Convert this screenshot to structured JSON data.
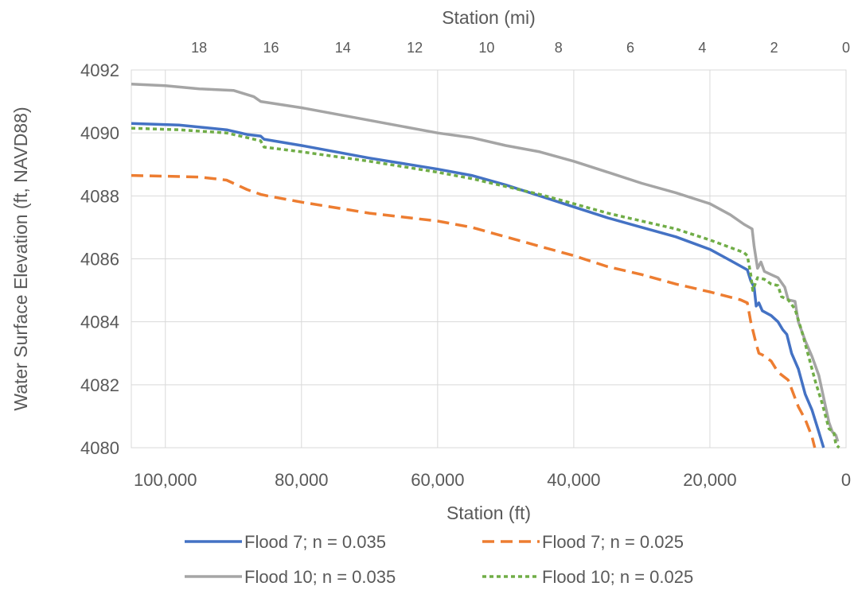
{
  "chart_data": {
    "type": "line",
    "xlabel": "Station (ft)",
    "x2label": "Station (mi)",
    "ylabel": "Water Surface Elevation (ft, NAVD88)",
    "xlim": [
      105000,
      0
    ],
    "x2lim": [
      19.886,
      0
    ],
    "ylim": [
      4080,
      4092
    ],
    "x_ticks": [
      100000,
      80000,
      60000,
      40000,
      20000,
      0
    ],
    "x_tick_labels": [
      "100,000",
      "80,000",
      "60,000",
      "40,000",
      "20,000",
      "0"
    ],
    "x2_ticks": [
      18,
      16,
      14,
      12,
      10,
      8,
      6,
      4,
      2,
      0
    ],
    "x2_tick_labels": [
      "18",
      "16",
      "14",
      "12",
      "10",
      "8",
      "6",
      "4",
      "2",
      "0"
    ],
    "y_ticks": [
      4080,
      4082,
      4084,
      4086,
      4088,
      4090,
      4092
    ],
    "y_tick_labels": [
      "4080",
      "4082",
      "4084",
      "4086",
      "4088",
      "4090",
      "4092"
    ],
    "grid": true,
    "legend_position": "bottom",
    "series": [
      {
        "name": "Flood 7; n = 0.035",
        "color": "#4472C4",
        "dash": "solid",
        "points": [
          [
            105000,
            4090.3
          ],
          [
            98000,
            4090.25
          ],
          [
            91000,
            4090.1
          ],
          [
            88000,
            4089.95
          ],
          [
            86000,
            4089.9
          ],
          [
            85500,
            4089.8
          ],
          [
            80000,
            4089.6
          ],
          [
            70000,
            4089.2
          ],
          [
            60000,
            4088.85
          ],
          [
            55000,
            4088.65
          ],
          [
            50000,
            4088.35
          ],
          [
            45000,
            4088.0
          ],
          [
            40000,
            4087.65
          ],
          [
            35000,
            4087.3
          ],
          [
            30000,
            4087.0
          ],
          [
            25000,
            4086.7
          ],
          [
            20000,
            4086.3
          ],
          [
            17000,
            4085.95
          ],
          [
            14500,
            4085.65
          ],
          [
            14000,
            4085.3
          ],
          [
            13500,
            4085.1
          ],
          [
            13200,
            4084.5
          ],
          [
            12800,
            4084.6
          ],
          [
            12300,
            4084.35
          ],
          [
            11000,
            4084.2
          ],
          [
            10000,
            4084.0
          ],
          [
            9300,
            4083.75
          ],
          [
            8700,
            4083.6
          ],
          [
            8000,
            4083.0
          ],
          [
            7000,
            4082.5
          ],
          [
            6000,
            4081.7
          ],
          [
            5000,
            4081.2
          ],
          [
            4000,
            4080.5
          ],
          [
            3300,
            4080.0
          ]
        ]
      },
      {
        "name": "Flood 7; n = 0.025",
        "color": "#ED7D31",
        "dash": "dashed",
        "points": [
          [
            105000,
            4088.65
          ],
          [
            95000,
            4088.6
          ],
          [
            91000,
            4088.5
          ],
          [
            88000,
            4088.2
          ],
          [
            86000,
            4088.05
          ],
          [
            85000,
            4088.0
          ],
          [
            80000,
            4087.8
          ],
          [
            70000,
            4087.45
          ],
          [
            60000,
            4087.2
          ],
          [
            55000,
            4087.0
          ],
          [
            50000,
            4086.7
          ],
          [
            45000,
            4086.4
          ],
          [
            40000,
            4086.1
          ],
          [
            35000,
            4085.75
          ],
          [
            30000,
            4085.5
          ],
          [
            25000,
            4085.2
          ],
          [
            20000,
            4084.95
          ],
          [
            15500,
            4084.7
          ],
          [
            14500,
            4084.6
          ],
          [
            14000,
            4084.0
          ],
          [
            13200,
            4083.3
          ],
          [
            12800,
            4083.0
          ],
          [
            12300,
            4082.95
          ],
          [
            11000,
            4082.75
          ],
          [
            10000,
            4082.4
          ],
          [
            8500,
            4082.15
          ],
          [
            7000,
            4081.3
          ],
          [
            6000,
            4080.9
          ],
          [
            5000,
            4080.35
          ],
          [
            4600,
            4080.0
          ]
        ]
      },
      {
        "name": "Flood 10; n = 0.035",
        "color": "#A5A5A5",
        "dash": "solid",
        "points": [
          [
            105000,
            4091.55
          ],
          [
            100000,
            4091.5
          ],
          [
            95000,
            4091.4
          ],
          [
            90000,
            4091.35
          ],
          [
            87000,
            4091.15
          ],
          [
            86000,
            4091.0
          ],
          [
            80000,
            4090.8
          ],
          [
            70000,
            4090.4
          ],
          [
            60000,
            4090.0
          ],
          [
            55000,
            4089.85
          ],
          [
            50000,
            4089.6
          ],
          [
            45000,
            4089.4
          ],
          [
            40000,
            4089.1
          ],
          [
            35000,
            4088.75
          ],
          [
            30000,
            4088.4
          ],
          [
            25000,
            4088.1
          ],
          [
            20000,
            4087.75
          ],
          [
            17000,
            4087.4
          ],
          [
            15000,
            4087.1
          ],
          [
            13800,
            4086.95
          ],
          [
            13500,
            4086.4
          ],
          [
            13000,
            4085.7
          ],
          [
            12500,
            4085.9
          ],
          [
            12000,
            4085.6
          ],
          [
            11000,
            4085.5
          ],
          [
            10000,
            4085.4
          ],
          [
            9000,
            4085.1
          ],
          [
            8500,
            4084.7
          ],
          [
            7500,
            4084.65
          ],
          [
            7000,
            4084.0
          ],
          [
            6000,
            4083.4
          ],
          [
            5000,
            4082.9
          ],
          [
            4000,
            4082.3
          ],
          [
            3000,
            4081.3
          ],
          [
            2500,
            4080.8
          ],
          [
            2000,
            4080.5
          ],
          [
            1500,
            4080.4
          ],
          [
            1200,
            4080.2
          ]
        ]
      },
      {
        "name": "Flood 10; n = 0.025",
        "color": "#70AD47",
        "dash": "dotted",
        "points": [
          [
            105000,
            4090.15
          ],
          [
            98000,
            4090.1
          ],
          [
            91000,
            4090.0
          ],
          [
            88000,
            4089.85
          ],
          [
            86000,
            4089.75
          ],
          [
            85500,
            4089.55
          ],
          [
            80000,
            4089.4
          ],
          [
            70000,
            4089.1
          ],
          [
            60000,
            4088.75
          ],
          [
            55000,
            4088.55
          ],
          [
            50000,
            4088.3
          ],
          [
            45000,
            4088.05
          ],
          [
            40000,
            4087.75
          ],
          [
            35000,
            4087.45
          ],
          [
            30000,
            4087.2
          ],
          [
            25000,
            4086.95
          ],
          [
            20000,
            4086.6
          ],
          [
            15000,
            4086.2
          ],
          [
            14500,
            4086.1
          ],
          [
            14000,
            4085.5
          ],
          [
            13700,
            4085.0
          ],
          [
            13000,
            4085.4
          ],
          [
            12000,
            4085.35
          ],
          [
            11000,
            4085.2
          ],
          [
            10000,
            4085.15
          ],
          [
            9500,
            4084.8
          ],
          [
            8500,
            4084.7
          ],
          [
            7500,
            4084.4
          ],
          [
            6500,
            4083.7
          ],
          [
            5500,
            4082.9
          ],
          [
            4500,
            4082.1
          ],
          [
            3500,
            4081.4
          ],
          [
            2500,
            4080.6
          ],
          [
            1800,
            4080.5
          ],
          [
            1500,
            4080.1
          ],
          [
            1000,
            4080.0
          ]
        ]
      }
    ]
  }
}
